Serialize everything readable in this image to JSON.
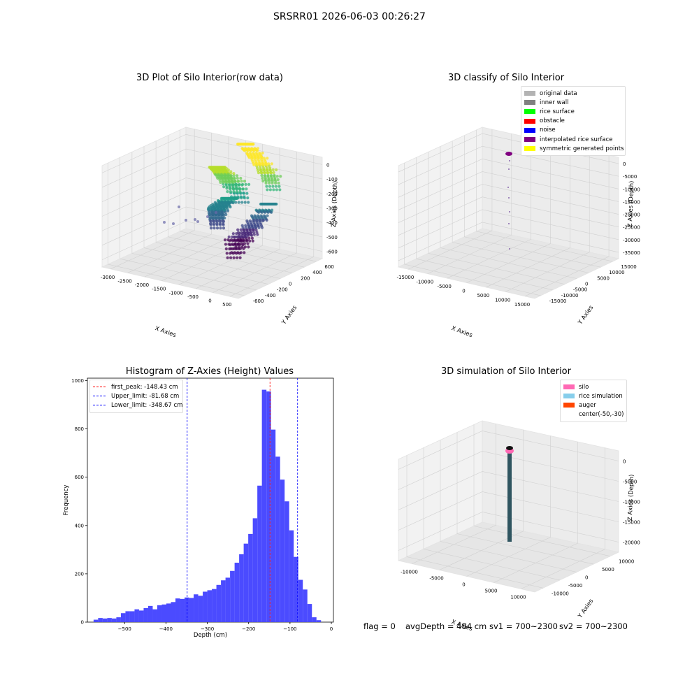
{
  "figure_title": "SRSRR01 2026-06-03 00:26:27",
  "panels": {
    "raw": {
      "title": "3D Plot of Silo Interior(row data)",
      "xlabel": "X Axies",
      "ylabel": "Y Axies",
      "zlabel": "Z Axies (Depth)",
      "xticks": [
        "-3000",
        "-2500",
        "-2000",
        "-1500",
        "-1000",
        "-500",
        "0",
        "500"
      ],
      "yticks": [
        "-600",
        "-400",
        "-200",
        "0",
        "200",
        "400",
        "600"
      ],
      "zticks": [
        "0",
        "-100",
        "-200",
        "-300",
        "-400",
        "-500",
        "-600"
      ]
    },
    "classify": {
      "title": "3D classify of Silo Interior",
      "xlabel": "X Axies",
      "ylabel": "Y Axies",
      "zlabel": "Z Axies (Depth)",
      "xticks": [
        "-15000",
        "-10000",
        "-5000",
        "0",
        "5000",
        "10000",
        "15000"
      ],
      "yticks": [
        "-15000",
        "-10000",
        "-5000",
        "0",
        "5000",
        "10000",
        "15000"
      ],
      "zticks": [
        "0",
        "-5000",
        "-10000",
        "-15000",
        "-20000",
        "-25000",
        "-30000",
        "-35000"
      ],
      "legend": [
        {
          "label": "original data",
          "color": "#b3b3b3"
        },
        {
          "label": "inner wall",
          "color": "#808080"
        },
        {
          "label": "rice surface",
          "color": "#00ff00"
        },
        {
          "label": "obstacle",
          "color": "#ff0000"
        },
        {
          "label": "noise",
          "color": "#0000ff"
        },
        {
          "label": "interpolated rice surface",
          "color": "#800080"
        },
        {
          "label": "symmetric generated points",
          "color": "#ffff00"
        }
      ]
    },
    "simulation": {
      "title": "3D simulation of Silo Interior",
      "xlabel": "X Axies",
      "ylabel": "Y Axies",
      "zlabel": "Z Axies (Depth)",
      "xticks": [
        "-10000",
        "-5000",
        "0",
        "5000",
        "10000"
      ],
      "yticks": [
        "-10000",
        "-5000",
        "0",
        "5000",
        "10000"
      ],
      "zticks": [
        "0",
        "-5000",
        "-10000",
        "-15000",
        "-20000"
      ],
      "legend": [
        {
          "label": "silo",
          "color": "#ff69b4"
        },
        {
          "label": "rice simulation",
          "color": "#87ceeb"
        },
        {
          "label": "auger",
          "color": "#ff4500"
        },
        {
          "label": "center(-50,-30)",
          "color": "#ffffff"
        }
      ]
    }
  },
  "footer": {
    "flag": "flag = 0",
    "avg_depth": "avgDepth = 484 cm",
    "sv1": "sv1 = 700~2300",
    "sv2": "sv2 = 700~2300"
  },
  "chart_data": [
    {
      "type": "bar",
      "title": "Histogram of Z-Axies (Height) Values",
      "xlabel": "Depth (cm)",
      "ylabel": "Frequency",
      "xlim": [
        -590,
        5
      ],
      "ylim": [
        0,
        1010
      ],
      "xticks": [
        -500,
        -400,
        -300,
        -200,
        -100,
        0
      ],
      "yticks": [
        0,
        200,
        400,
        600,
        800,
        1000
      ],
      "bin_start": -575,
      "bin_width": 11,
      "values": [
        10,
        17,
        15,
        17,
        15,
        20,
        37,
        45,
        45,
        53,
        48,
        58,
        67,
        53,
        70,
        73,
        77,
        83,
        98,
        96,
        102,
        100,
        115,
        109,
        126,
        132,
        137,
        154,
        173,
        184,
        212,
        246,
        281,
        325,
        365,
        430,
        565,
        962,
        955,
        797,
        685,
        590,
        500,
        380,
        270,
        175,
        135,
        75,
        20,
        8
      ],
      "lines": [
        {
          "name": "first_peak: -148.43 cm",
          "x": -148.43,
          "color": "#ff0000"
        },
        {
          "name": "Upper_limit: -81.68 cm",
          "x": -81.68,
          "color": "#0000ff"
        },
        {
          "name": "Lower_limit: -348.67 cm",
          "x": -348.67,
          "color": "#0000ff"
        }
      ],
      "bar_color": "#4b4bff"
    }
  ]
}
